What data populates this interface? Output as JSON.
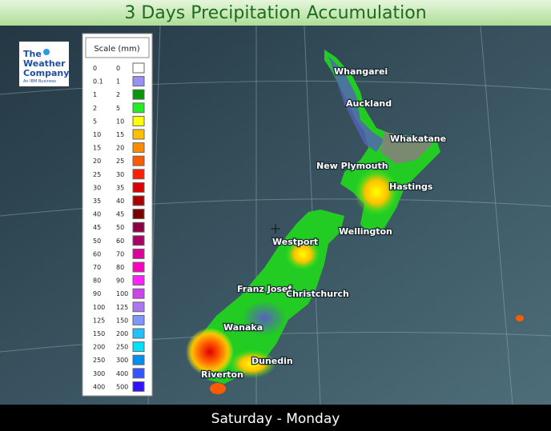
{
  "header": {
    "title": "3 Days Precipitation Accumulation"
  },
  "footer": {
    "period": "Saturday - Monday"
  },
  "logo": {
    "line1": "The",
    "line2": "Weather",
    "line3": "Company",
    "line4": "An IBM Business"
  },
  "legend": {
    "title": "Scale (mm)",
    "rows": [
      {
        "low": 0,
        "high": 0,
        "color": "#ffffff"
      },
      {
        "low": 0.1,
        "high": 1,
        "color": "#9a8ff2"
      },
      {
        "low": 1,
        "high": 2,
        "color": "#0a960a"
      },
      {
        "low": 2,
        "high": 5,
        "color": "#22ee22"
      },
      {
        "low": 5,
        "high": 10,
        "color": "#ffff00"
      },
      {
        "low": 10,
        "high": 15,
        "color": "#ffc000"
      },
      {
        "low": 15,
        "high": 20,
        "color": "#ff8c00"
      },
      {
        "low": 20,
        "high": 25,
        "color": "#ff5a00"
      },
      {
        "low": 25,
        "high": 30,
        "color": "#ff2000"
      },
      {
        "low": 30,
        "high": 35,
        "color": "#dd0000"
      },
      {
        "low": 35,
        "high": 40,
        "color": "#aa0000"
      },
      {
        "low": 40,
        "high": 45,
        "color": "#7a0000"
      },
      {
        "low": 45,
        "high": 50,
        "color": "#8a0040"
      },
      {
        "low": 50,
        "high": 60,
        "color": "#aa0066"
      },
      {
        "low": 60,
        "high": 70,
        "color": "#dd0099"
      },
      {
        "low": 70,
        "high": 80,
        "color": "#ff00c0"
      },
      {
        "low": 80,
        "high": 90,
        "color": "#ff22ff"
      },
      {
        "low": 90,
        "high": 100,
        "color": "#cc44ee"
      },
      {
        "low": 100,
        "high": 125,
        "color": "#aa77f0"
      },
      {
        "low": 125,
        "high": 150,
        "color": "#7f95ff"
      },
      {
        "low": 150,
        "high": 200,
        "color": "#22c0ff"
      },
      {
        "low": 200,
        "high": 250,
        "color": "#00e0ff"
      },
      {
        "low": 250,
        "high": 300,
        "color": "#0090f0"
      },
      {
        "low": 300,
        "high": 400,
        "color": "#3355ff"
      },
      {
        "low": 400,
        "high": 500,
        "color": "#3311ff"
      }
    ]
  },
  "cities": [
    "Whangarei",
    "Auckland",
    "Whakatane",
    "New Plymouth",
    "Hastings",
    "Wellington",
    "Westport",
    "Franz Josef",
    "Christchurch",
    "Wanaka",
    "Dunedin",
    "Riverton"
  ]
}
